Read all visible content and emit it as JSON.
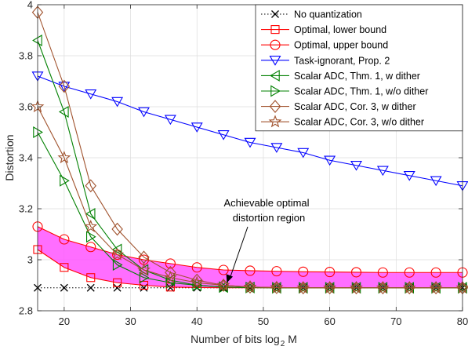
{
  "chart_data": {
    "type": "line",
    "title": "",
    "xlabel": "Number of bits log",
    "xlabel_sub": "2",
    "xlabel_suffix": "M",
    "ylabel": "Distortion",
    "xlim": [
      16,
      80
    ],
    "ylim": [
      2.8,
      4.0
    ],
    "xticks": [
      20,
      30,
      40,
      50,
      60,
      70,
      80
    ],
    "yticks": [
      2.8,
      3,
      3.2,
      3.4,
      3.6,
      3.8,
      4
    ],
    "ytick_labels": [
      "2.8",
      "3",
      "3.2",
      "3.4",
      "3.6",
      "3.8",
      "4"
    ],
    "grid": true,
    "legend_position": "top-right",
    "x": [
      16,
      20,
      24,
      28,
      32,
      36,
      40,
      44,
      48,
      52,
      56,
      60,
      64,
      68,
      72,
      76,
      80
    ],
    "shaded_region": {
      "fill": "#ff55ff",
      "between": [
        "Optimal, lower bound",
        "Optimal, upper bound"
      ]
    },
    "annotation": {
      "lines": [
        "Achievable optimal",
        "distortion region"
      ],
      "arrow_to": [
        44.5,
        2.91
      ]
    },
    "series": [
      {
        "name": "No quantization",
        "color": "#000000",
        "marker": "x",
        "dash": "dotted",
        "values": [
          2.89,
          2.89,
          2.89,
          2.89,
          2.89,
          2.89,
          2.89,
          2.89,
          2.89,
          2.89,
          2.89,
          2.89,
          2.89,
          2.89,
          2.89,
          2.89,
          2.89
        ]
      },
      {
        "name": "Optimal, lower bound",
        "color": "#ff0000",
        "marker": "square",
        "dash": "solid",
        "x": [
          16,
          20,
          24,
          28,
          32,
          36
        ],
        "values": [
          3.04,
          2.97,
          2.93,
          2.91,
          2.9,
          2.893
        ],
        "line_x": [
          16,
          20,
          24,
          28,
          32,
          36,
          40,
          44,
          48,
          52,
          56,
          60,
          64,
          68,
          72,
          76,
          80
        ],
        "line_values": [
          3.04,
          2.97,
          2.93,
          2.91,
          2.9,
          2.893,
          2.891,
          2.89,
          2.89,
          2.89,
          2.89,
          2.89,
          2.89,
          2.89,
          2.89,
          2.89,
          2.89
        ]
      },
      {
        "name": "Optimal, upper bound",
        "color": "#ff0000",
        "marker": "circle",
        "dash": "solid",
        "values": [
          3.13,
          3.08,
          3.05,
          3.02,
          3.0,
          2.985,
          2.97,
          2.96,
          2.957,
          2.955,
          2.953,
          2.952,
          2.951,
          2.95,
          2.95,
          2.95,
          2.95
        ]
      },
      {
        "name": "Task-ignorant, Prop. 2",
        "color": "#0000ff",
        "marker": "triangle-down",
        "dash": "solid",
        "values": [
          3.72,
          3.68,
          3.65,
          3.62,
          3.58,
          3.55,
          3.52,
          3.49,
          3.46,
          3.44,
          3.42,
          3.39,
          3.37,
          3.35,
          3.33,
          3.31,
          3.29
        ]
      },
      {
        "name": "Scalar ADC, Thm. 1, w dither",
        "color": "#008000",
        "marker": "triangle-left",
        "dash": "solid",
        "values": [
          3.86,
          3.58,
          3.18,
          3.04,
          2.96,
          2.92,
          2.9,
          2.893,
          2.891,
          2.89,
          2.89,
          2.89,
          2.89,
          2.89,
          2.89,
          2.89,
          2.89
        ]
      },
      {
        "name": "Scalar ADC, Thm. 1, w/o dither",
        "color": "#008000",
        "marker": "triangle-right",
        "dash": "solid",
        "values": [
          3.5,
          3.31,
          3.09,
          2.98,
          2.93,
          2.91,
          2.9,
          2.893,
          2.891,
          2.89,
          2.89,
          2.89,
          2.89,
          2.89,
          2.89,
          2.89,
          2.89
        ]
      },
      {
        "name": "Scalar ADC, Cor. 3, w dither",
        "color": "#a0522d",
        "marker": "diamond",
        "dash": "solid",
        "values": [
          3.97,
          3.68,
          3.29,
          3.12,
          3.01,
          2.95,
          2.92,
          2.9,
          2.893,
          2.891,
          2.89,
          2.89,
          2.89,
          2.89,
          2.89,
          2.89,
          2.89
        ]
      },
      {
        "name": "Scalar ADC, Cor. 3, w/o dither",
        "color": "#a0522d",
        "marker": "star",
        "dash": "solid",
        "values": [
          3.6,
          3.4,
          3.13,
          3.02,
          2.96,
          2.93,
          2.91,
          2.9,
          2.893,
          2.891,
          2.89,
          2.89,
          2.89,
          2.89,
          2.89,
          2.89,
          2.89
        ]
      }
    ]
  }
}
